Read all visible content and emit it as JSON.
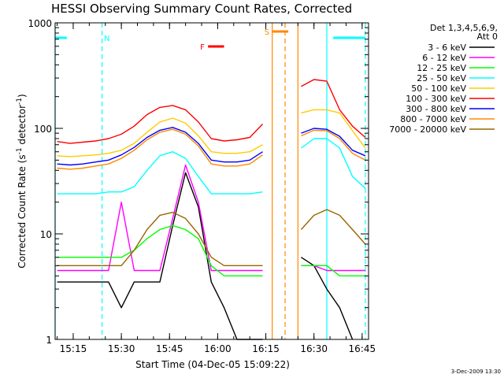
{
  "chart_data": {
    "type": "line",
    "title": "HESSI Observing Summary Count Rates, Corrected",
    "xlabel": "Start Time (04-Dec-05 15:09:22)",
    "ylabel": "Corrected Count Rate (s-1 detector-1)",
    "ylabel_parts": {
      "a": "Corrected Count Rate (s",
      "sup1": "-1",
      "b": " detector",
      "sup2": "-1",
      "c": ")"
    },
    "yscale": "log",
    "ylim": [
      1,
      1000
    ],
    "xlim": [
      "15:09:22",
      "16:47:00"
    ],
    "x_ticks": [
      "15:15",
      "15:30",
      "15:45",
      "16:00",
      "16:15",
      "16:30",
      "16:45"
    ],
    "y_ticks": [
      "1",
      "10",
      "100",
      "1000"
    ],
    "legend_title": [
      "Det 1,3,4,5,6,9,",
      "Att 0"
    ],
    "legend_position": "right",
    "x_points": [
      "15:10",
      "15:14",
      "15:18",
      "15:22",
      "15:26",
      "15:30",
      "15:34",
      "15:38",
      "15:42",
      "15:46",
      "15:50",
      "15:54",
      "15:58",
      "16:02",
      "16:06",
      "16:10",
      "16:14",
      "16:17",
      "16:24",
      "16:26",
      "16:30",
      "16:34",
      "16:38",
      "16:42",
      "16:46"
    ],
    "series": [
      {
        "name": "3 - 6 keV",
        "color": "#000000",
        "values": [
          3.5,
          3.5,
          3.5,
          3.5,
          3.5,
          2,
          3.5,
          3.5,
          3.5,
          12,
          38,
          18,
          3.5,
          2,
          1,
          1,
          1,
          null,
          null,
          6,
          5,
          3,
          2,
          1,
          null
        ]
      },
      {
        "name": "6 - 12 keV",
        "color": "#ff00ff",
        "values": [
          4.5,
          4.5,
          4.5,
          4.5,
          4.5,
          20,
          4.5,
          4.5,
          4.5,
          14,
          45,
          20,
          4.5,
          4.5,
          4.5,
          4.5,
          4.5,
          null,
          null,
          5,
          5,
          4.5,
          4.5,
          4.5,
          4.5
        ]
      },
      {
        "name": "12 - 25 keV",
        "color": "#00ff00",
        "values": [
          6,
          6,
          6,
          6,
          6,
          6,
          7,
          9,
          11,
          12,
          11,
          9,
          5,
          4,
          4,
          4,
          4,
          null,
          null,
          5,
          5,
          5,
          4,
          4,
          4
        ]
      },
      {
        "name": "25 - 50 keV",
        "color": "#00ffff",
        "values": [
          24,
          24,
          24,
          24,
          25,
          25,
          28,
          40,
          55,
          60,
          52,
          35,
          24,
          24,
          24,
          24,
          25,
          null,
          null,
          65,
          80,
          80,
          65,
          35,
          27
        ]
      },
      {
        "name": "50 - 100 keV",
        "color": "#ffcc00",
        "values": [
          55,
          54,
          55,
          56,
          58,
          62,
          72,
          92,
          115,
          125,
          112,
          85,
          60,
          58,
          58,
          60,
          70,
          null,
          null,
          140,
          150,
          150,
          140,
          95,
          65
        ]
      },
      {
        "name": "100 - 300 keV",
        "color": "#ff0000",
        "values": [
          75,
          72,
          74,
          76,
          80,
          88,
          105,
          135,
          158,
          165,
          150,
          115,
          80,
          76,
          78,
          82,
          110,
          null,
          null,
          250,
          290,
          280,
          150,
          105,
          82
        ]
      },
      {
        "name": "300 - 800 keV",
        "color": "#0000ff",
        "values": [
          46,
          45,
          46,
          48,
          50,
          56,
          66,
          82,
          96,
          102,
          92,
          72,
          50,
          48,
          48,
          50,
          60,
          null,
          null,
          90,
          100,
          98,
          84,
          62,
          55
        ]
      },
      {
        "name": "800 - 7000 keV",
        "color": "#ff8800",
        "values": [
          42,
          41,
          42,
          44,
          46,
          52,
          62,
          78,
          92,
          98,
          88,
          68,
          46,
          44,
          44,
          46,
          56,
          null,
          null,
          85,
          96,
          95,
          80,
          58,
          50
        ]
      },
      {
        "name": "7000 - 20000 keV",
        "color": "#996600",
        "values": [
          5,
          5,
          5,
          5,
          5,
          5,
          7,
          11,
          15,
          16,
          14,
          10,
          6,
          5,
          5,
          5,
          5,
          null,
          null,
          11,
          15,
          17,
          15,
          11,
          8
        ]
      }
    ],
    "annotations": {
      "bars": [
        {
          "label": "N",
          "color": "#00ffff",
          "segments": [
            [
              "15:09:22",
              "15:13"
            ],
            [
              "16:36",
              "16:46"
            ]
          ]
        },
        {
          "label": "F",
          "color": "#ff0000",
          "segments": [
            [
              "15:57",
              "16:02"
            ]
          ]
        },
        {
          "label": "S",
          "color": "#ff8800",
          "segments": [
            [
              "16:17",
              "16:22"
            ]
          ]
        }
      ],
      "vlines": [
        {
          "t": "15:09:22",
          "color": "#00ffff",
          "dash": false
        },
        {
          "t": "15:24",
          "color": "#00ffff",
          "dash": true
        },
        {
          "t": "16:17",
          "color": "#ff8800",
          "dash": false
        },
        {
          "t": "16:21",
          "color": "#ff8800",
          "dash": true
        },
        {
          "t": "16:25",
          "color": "#ff8800",
          "dash": false
        },
        {
          "t": "16:34",
          "color": "#00ffff",
          "dash": false
        },
        {
          "t": "16:46",
          "color": "#00ffff",
          "dash": true
        }
      ]
    }
  },
  "footer_stamp": "3-Dec-2009 13:30"
}
